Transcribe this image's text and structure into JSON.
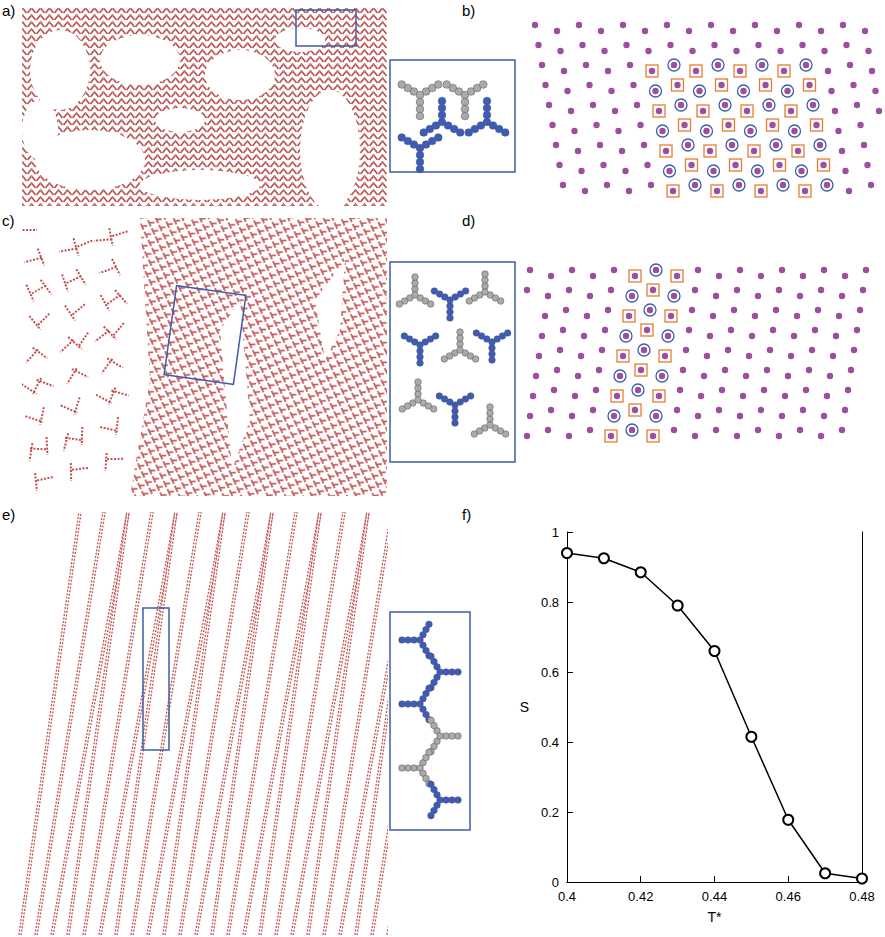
{
  "panel_labels": [
    "a)",
    "b)",
    "c)",
    "d)",
    "e)",
    "f)"
  ],
  "chart_data": {
    "type": "line",
    "x_label": "T*",
    "y_label": "S",
    "x": [
      0.4,
      0.41,
      0.42,
      0.43,
      0.44,
      0.45,
      0.46,
      0.47,
      0.48
    ],
    "series": [
      {
        "name": "S",
        "color": "#000000",
        "marker": "open_circle",
        "line_style": "solid",
        "values": [
          0.94,
          0.925,
          0.885,
          0.79,
          0.66,
          0.415,
          0.178,
          0.025,
          0.01
        ]
      }
    ],
    "xlim": [
      0.4,
      0.48
    ],
    "xticks": [
      0.4,
      0.42,
      0.44,
      0.46,
      0.48
    ],
    "ylim": [
      0,
      1
    ],
    "yticks": [
      0,
      0.2,
      0.4,
      0.6,
      0.8,
      1
    ],
    "grid": false
  }
}
